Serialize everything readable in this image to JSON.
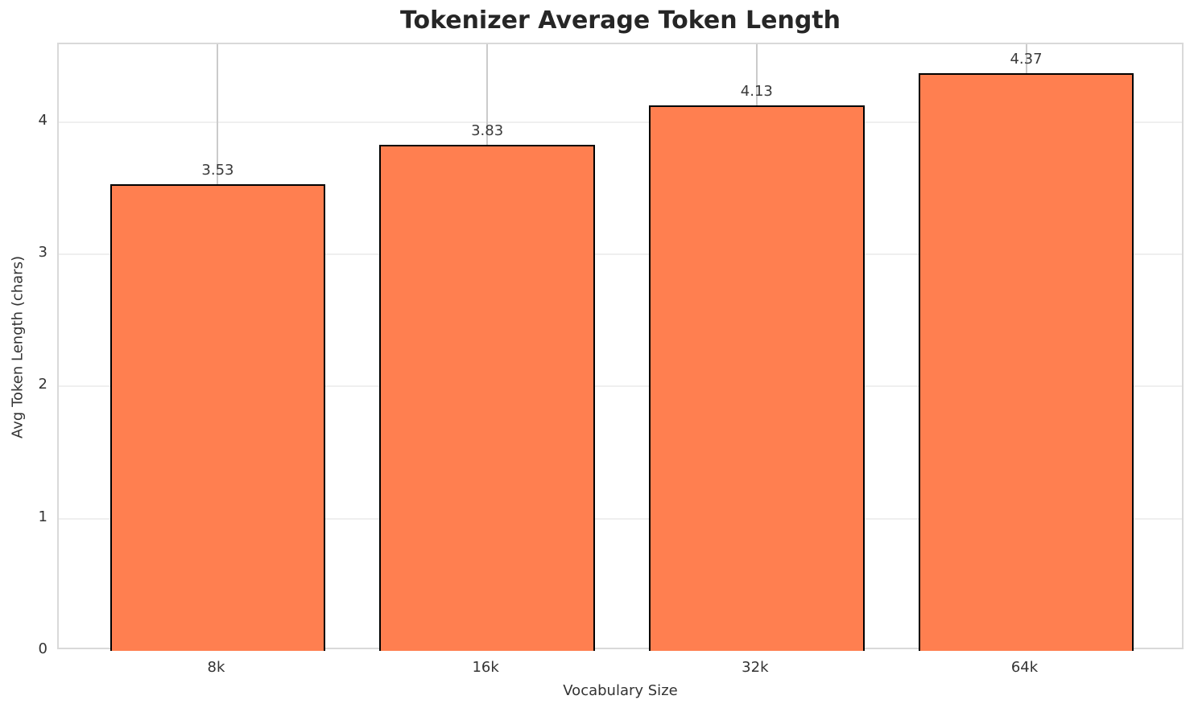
{
  "chart_data": {
    "type": "bar",
    "title": "Tokenizer Average Token Length",
    "xlabel": "Vocabulary Size",
    "ylabel": "Avg Token Length (chars)",
    "categories": [
      "8k",
      "16k",
      "32k",
      "64k"
    ],
    "values": [
      3.53,
      3.83,
      4.13,
      4.37
    ],
    "value_labels": [
      "3.53",
      "3.83",
      "4.13",
      "4.37"
    ],
    "yticks": [
      0,
      1,
      2,
      3,
      4
    ],
    "ylim": [
      0,
      4.59
    ],
    "grid": true,
    "legend_position": "none",
    "bar_color": "#FF7F50",
    "bar_edge_color": "#000000",
    "grid_h_color": "#efefef",
    "grid_v_color": "#cbcbcb",
    "spine_color": "#d9d9d9",
    "title_color": "#262626",
    "text_color": "#333333"
  }
}
